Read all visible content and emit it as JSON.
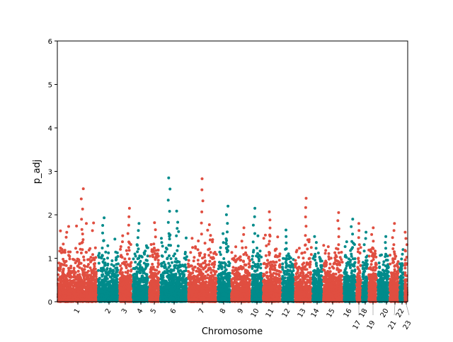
{
  "chart_data": {
    "type": "scatter",
    "title": "",
    "xlabel": "Chromosome",
    "ylabel": "p_adj",
    "ylim": [
      0,
      6
    ],
    "yticks": [
      "0",
      "1",
      "2",
      "3",
      "4",
      "5",
      "6"
    ],
    "grid": false,
    "legend": "none",
    "colors": [
      "#e04e40",
      "#008b8b"
    ],
    "chromosomes": [
      {
        "label": "1",
        "peak": 2.6
      },
      {
        "label": "2",
        "peak": 1.93
      },
      {
        "label": "3",
        "peak": 2.15
      },
      {
        "label": "4",
        "peak": 1.8
      },
      {
        "label": "5",
        "peak": 1.82
      },
      {
        "label": "6",
        "peak": 2.85
      },
      {
        "label": "7",
        "peak": 2.83
      },
      {
        "label": "8",
        "peak": 2.2
      },
      {
        "label": "9",
        "peak": 1.7
      },
      {
        "label": "10",
        "peak": 2.15
      },
      {
        "label": "11",
        "peak": 2.07
      },
      {
        "label": "12",
        "peak": 1.65
      },
      {
        "label": "13",
        "peak": 2.38
      },
      {
        "label": "14",
        "peak": 1.5
      },
      {
        "label": "15",
        "peak": 2.05
      },
      {
        "label": "16",
        "peak": 1.9
      },
      {
        "label": "17",
        "peak": 1.8
      },
      {
        "label": "18",
        "peak": 1.6
      },
      {
        "label": "19",
        "peak": 1.7
      },
      {
        "label": "20",
        "peak": 1.5
      },
      {
        "label": "21",
        "peak": 1.8
      },
      {
        "label": "22",
        "peak": 1.2
      },
      {
        "label": "23",
        "peak": 1.6
      }
    ]
  }
}
